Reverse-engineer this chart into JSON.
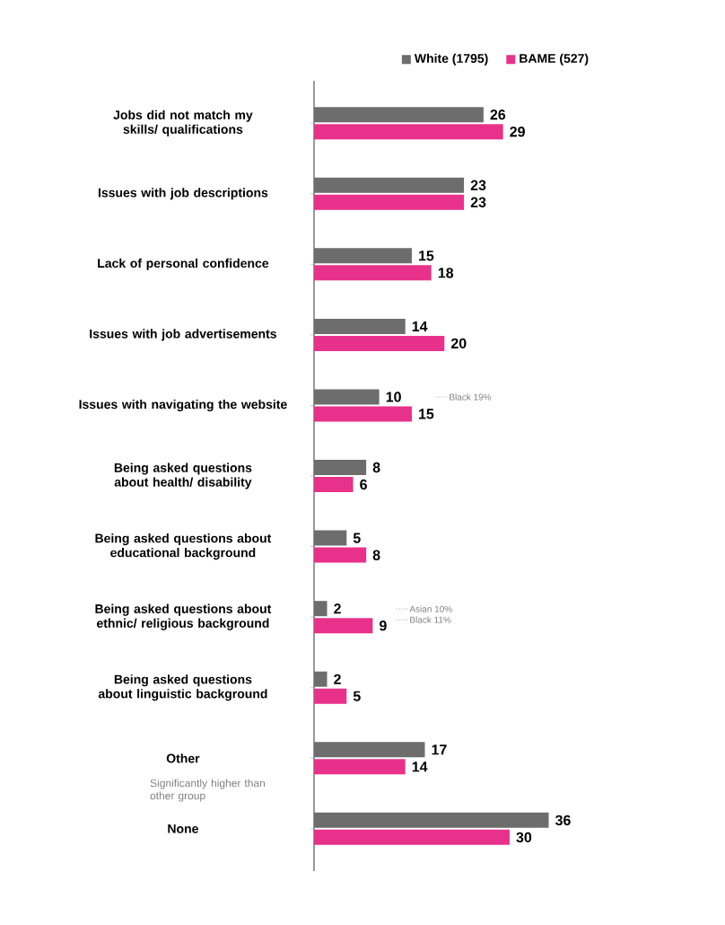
{
  "chart_data": {
    "type": "bar",
    "orientation": "horizontal",
    "data_labels": true,
    "legend": "top",
    "categories": [
      "Jobs did not match my skills/ qualifications",
      "Issues with job descriptions",
      "Lack of personal confidence",
      "Issues with job advertisements",
      "Issues with navigating the website",
      "Being asked questions about health/ disability",
      "Being asked questions about educational background",
      "Being asked questions about ethnic/ religious background",
      "Being asked questions about linguistic background",
      "Other",
      "None"
    ],
    "series": [
      {
        "name": "White (1795)",
        "color": "#6d6d6d",
        "values": [
          26,
          23,
          15,
          14,
          10,
          8,
          5,
          2,
          2,
          17,
          36
        ]
      },
      {
        "name": "BAME (527)",
        "color": "#e8318a",
        "values": [
          29,
          23,
          18,
          20,
          15,
          6,
          8,
          9,
          5,
          14,
          30
        ]
      }
    ],
    "annotations": [
      "Black 19%",
      "Asian 10%",
      "Black 11%",
      "Significantly higher than other group"
    ]
  }
}
